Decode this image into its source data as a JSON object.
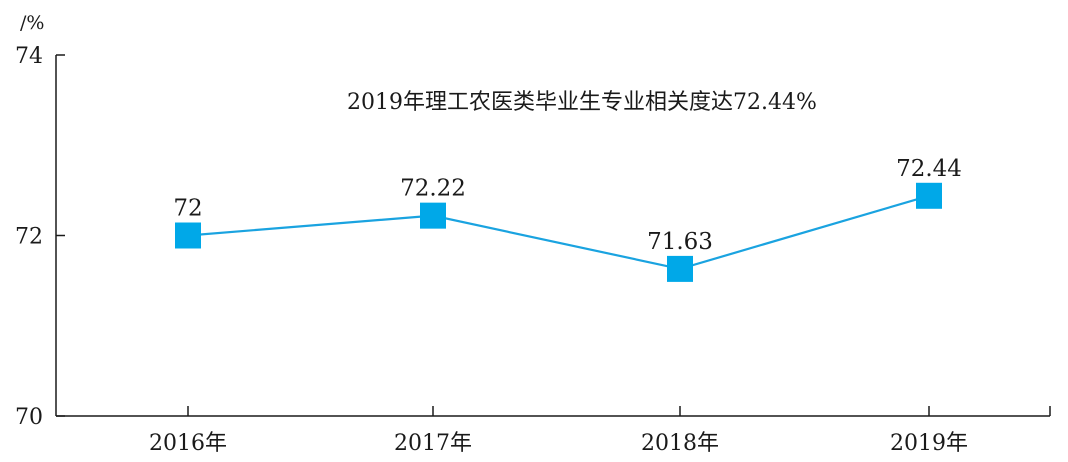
{
  "chart_data": {
    "type": "line",
    "title": "2019年理工农医类毕业生专业相关度达72.44%",
    "ylabel": "/%",
    "xlabel": "",
    "ylim": [
      70,
      74
    ],
    "yticks": [
      70,
      72,
      74
    ],
    "categories": [
      "2016年",
      "2017年",
      "2018年",
      "2019年"
    ],
    "series": [
      {
        "values": [
          72,
          72.22,
          71.63,
          72.44
        ],
        "labels": [
          "72",
          "72.22",
          "71.63",
          "72.44"
        ]
      }
    ],
    "grid": false,
    "colors": {
      "line": "#1aa3e0",
      "marker": "#00a8e8",
      "axis": "#1a1a1a"
    }
  }
}
